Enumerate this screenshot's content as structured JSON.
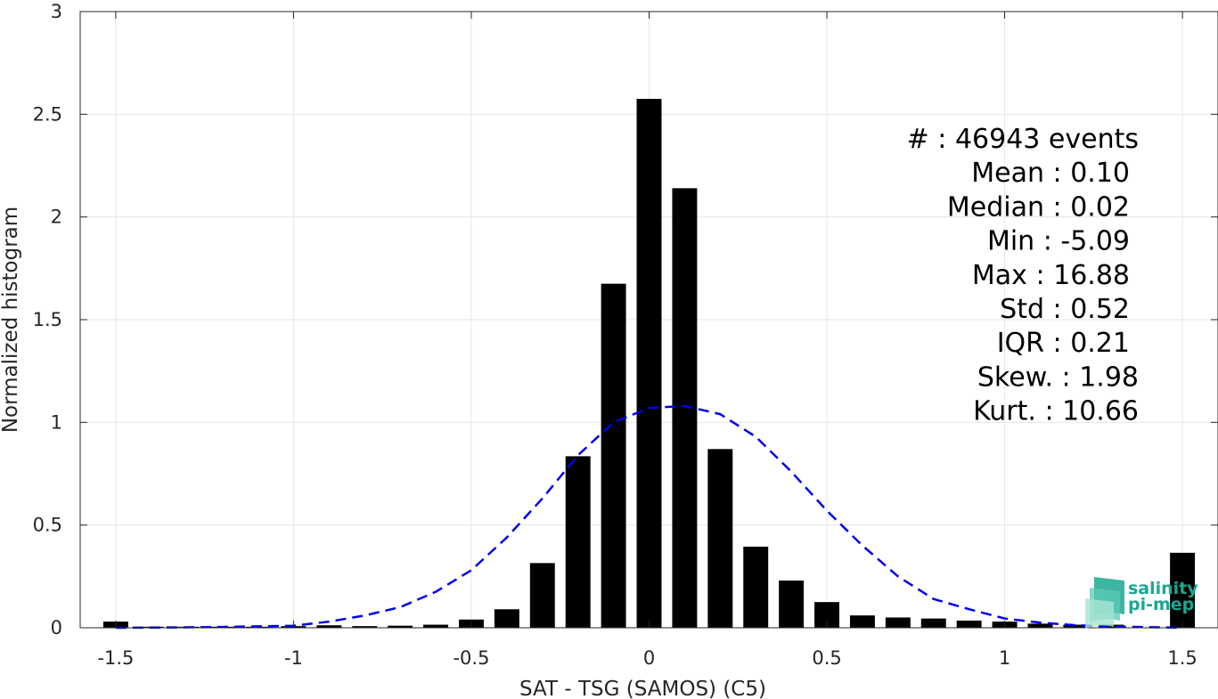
{
  "chart_data": {
    "type": "bar",
    "xlabel": "SAT - TSG (SAMOS) (C5)",
    "ylabel": "Normalized histogram",
    "xlim": [
      -1.6,
      1.6
    ],
    "ylim": [
      0,
      3
    ],
    "xticks": [
      "-1.5",
      "-1",
      "-0.5",
      "0",
      "0.5",
      "1",
      "1.5"
    ],
    "xtick_values": [
      -1.5,
      -1,
      -0.5,
      0,
      0.5,
      1,
      1.5
    ],
    "yticks": [
      "0",
      "0.5",
      "1",
      "1.5",
      "2",
      "2.5",
      "3"
    ],
    "ytick_values": [
      0,
      0.5,
      1,
      1.5,
      2,
      2.5,
      3
    ],
    "grid": true,
    "bar_width": 0.07,
    "bars": {
      "x": [
        -1.5,
        -1.4,
        -1.3,
        -1.2,
        -1.1,
        -1.0,
        -0.9,
        -0.8,
        -0.7,
        -0.6,
        -0.5,
        -0.4,
        -0.3,
        -0.2,
        -0.1,
        0.0,
        0.1,
        0.2,
        0.3,
        0.4,
        0.5,
        0.6,
        0.7,
        0.8,
        0.9,
        1.0,
        1.1,
        1.2,
        1.3,
        1.5
      ],
      "values": [
        0.03,
        0.005,
        0.005,
        0.005,
        0.005,
        0.008,
        0.012,
        0.008,
        0.01,
        0.015,
        0.04,
        0.09,
        0.315,
        0.835,
        1.675,
        2.575,
        2.14,
        0.87,
        0.395,
        0.23,
        0.125,
        0.06,
        0.05,
        0.045,
        0.035,
        0.03,
        0.02,
        0.015,
        0.015,
        0.365
      ],
      "color": "#000000"
    },
    "fit_curve": {
      "style": "dashed",
      "color": "#0000ee",
      "x": [
        -1.5,
        -1.4,
        -1.3,
        -1.2,
        -1.1,
        -1.0,
        -0.9,
        -0.8,
        -0.7,
        -0.6,
        -0.5,
        -0.4,
        -0.3,
        -0.2,
        -0.1,
        0.0,
        0.1,
        0.2,
        0.3,
        0.4,
        0.5,
        0.6,
        0.7,
        0.8,
        0.9,
        1.0,
        1.1,
        1.2,
        1.3,
        1.4,
        1.5
      ],
      "y": [
        0.0,
        0.001,
        0.002,
        0.004,
        0.007,
        0.01,
        0.03,
        0.06,
        0.1,
        0.175,
        0.28,
        0.44,
        0.63,
        0.84,
        1.0,
        1.07,
        1.08,
        1.04,
        0.93,
        0.76,
        0.57,
        0.4,
        0.25,
        0.14,
        0.09,
        0.045,
        0.025,
        0.012,
        0.006,
        0.003,
        0.0
      ]
    },
    "stats": [
      "#  : 46943 events",
      "Mean : 0.10",
      "Median : 0.02",
      "Min : -5.09",
      "Max : 16.88",
      "Std : 0.52",
      "IQR : 0.21",
      "Skew. : 1.98",
      "Kurt. : 10.66"
    ]
  },
  "logo": {
    "line1": "salinity",
    "line2": "pi-mep",
    "color": "#1aa890"
  }
}
